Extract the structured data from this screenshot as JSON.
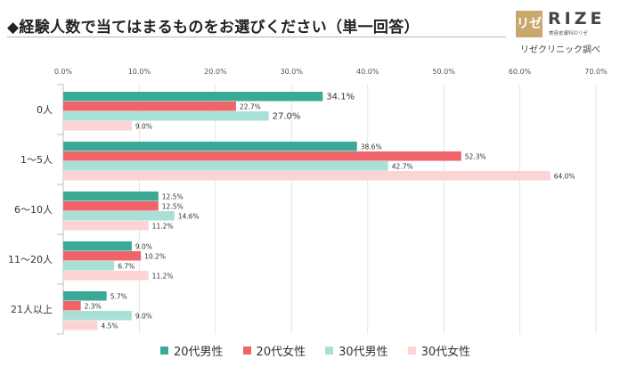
{
  "header": {
    "title": "◆経験人数で当てはまるものをお選びください（単一回答）",
    "logo_mark": "リゼ",
    "logo_word": "RIZE",
    "logo_subtitle": "美容皮膚科のリゼ",
    "caption": "リゼクリニック調べ"
  },
  "colors": {
    "20代男性": "#3aaa96",
    "20代女性": "#ee6468",
    "30代男性": "#a8e0d6",
    "30代女性": "#fcd4d4"
  },
  "chart_data": {
    "type": "bar",
    "orientation": "horizontal",
    "categories": [
      "0人",
      "1～5人",
      "6～10人",
      "11～20人",
      "21人以上"
    ],
    "series": [
      {
        "name": "20代男性",
        "values": [
          34.1,
          38.6,
          12.5,
          9.0,
          5.7
        ]
      },
      {
        "name": "20代女性",
        "values": [
          22.7,
          52.3,
          12.5,
          10.2,
          2.3
        ]
      },
      {
        "name": "30代男性",
        "values": [
          27.0,
          42.7,
          14.6,
          6.7,
          9.0
        ]
      },
      {
        "name": "30代女性",
        "values": [
          9.0,
          64.0,
          11.2,
          11.2,
          4.5
        ]
      }
    ],
    "value_labels": [
      [
        "34.1%",
        "22.7%",
        "27.0%",
        "9.0%"
      ],
      [
        "38.6%",
        "52.3%",
        "42.7%",
        "64.0%"
      ],
      [
        "12.5%",
        "12.5%",
        "14.6%",
        "11.2%"
      ],
      [
        "9.0%",
        "10.2%",
        "6.7%",
        "11.2%"
      ],
      [
        "5.7%",
        "2.3%",
        "9.0%",
        "4.5%"
      ]
    ],
    "xlim": [
      0,
      70
    ],
    "x_ticks": [
      "0.0%",
      "10.0%",
      "20.0%",
      "30.0%",
      "40.0%",
      "50.0%",
      "60.0%",
      "70.0%"
    ],
    "grid": true,
    "legend_position": "bottom"
  }
}
